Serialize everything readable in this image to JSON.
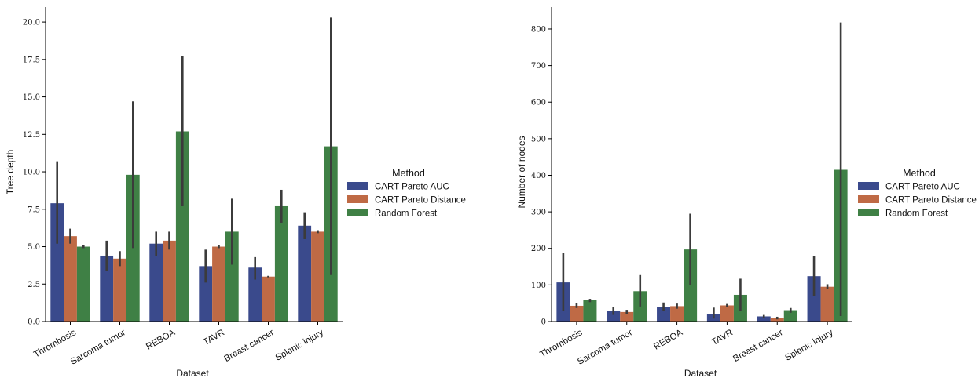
{
  "chart_data": [
    {
      "type": "bar",
      "xlabel": "Dataset",
      "ylabel": "Tree depth",
      "ylim": [
        0,
        21
      ],
      "yticks": [
        0.0,
        2.5,
        5.0,
        7.5,
        10.0,
        12.5,
        15.0,
        17.5,
        20.0
      ],
      "ytick_labels": [
        "0.0",
        "2.5",
        "5.0",
        "7.5",
        "10.0",
        "12.5",
        "15.0",
        "17.5",
        "20.0"
      ],
      "categories": [
        "Thrombosis",
        "Sarcoma tumor",
        "REBOA",
        "TAVR",
        "Breast cancer",
        "Splenic injury"
      ],
      "legend": {
        "title": "Method",
        "placement": "right"
      },
      "series": [
        {
          "name": "CART Pareto AUC",
          "color": "#3a4a8c",
          "values": [
            7.9,
            4.4,
            5.2,
            3.7,
            3.6,
            6.4
          ],
          "ci": [
            [
              5.2,
              10.7
            ],
            [
              3.4,
              5.4
            ],
            [
              4.4,
              6.0
            ],
            [
              2.6,
              4.8
            ],
            [
              2.8,
              4.3
            ],
            [
              5.5,
              7.3
            ]
          ]
        },
        {
          "name": "CART Pareto Distance",
          "color": "#bf6a45",
          "values": [
            5.7,
            4.2,
            5.4,
            5.0,
            3.0,
            6.0
          ],
          "ci": [
            [
              5.2,
              6.2
            ],
            [
              3.7,
              4.7
            ],
            [
              4.8,
              6.0
            ],
            [
              4.9,
              5.1
            ],
            [
              2.95,
              3.05
            ],
            [
              5.9,
              6.1
            ]
          ]
        },
        {
          "name": "Random Forest",
          "color": "#3f8045",
          "values": [
            5.0,
            9.8,
            12.7,
            6.0,
            7.7,
            11.7
          ],
          "ci": [
            [
              4.9,
              5.1
            ],
            [
              4.9,
              14.7
            ],
            [
              7.7,
              17.7
            ],
            [
              3.8,
              8.2
            ],
            [
              6.6,
              8.8
            ],
            [
              3.1,
              20.3
            ]
          ]
        }
      ]
    },
    {
      "type": "bar",
      "xlabel": "Dataset",
      "ylabel": "Number of nodes",
      "ylim": [
        0,
        860
      ],
      "yticks": [
        0,
        100,
        200,
        300,
        400,
        500,
        600,
        700,
        800
      ],
      "ytick_labels": [
        "0",
        "100",
        "200",
        "300",
        "400",
        "500",
        "600",
        "700",
        "800"
      ],
      "categories": [
        "Thrombosis",
        "Sarcoma tumor",
        "REBOA",
        "TAVR",
        "Breast cancer",
        "Splenic injury"
      ],
      "legend": {
        "title": "Method",
        "placement": "right"
      },
      "series": [
        {
          "name": "CART Pareto AUC",
          "color": "#3a4a8c",
          "values": [
            107,
            28,
            39,
            21,
            14,
            124
          ],
          "ci": [
            [
              30,
              187
            ],
            [
              18,
              40
            ],
            [
              28,
              52
            ],
            [
              8,
              38
            ],
            [
              9,
              18
            ],
            [
              70,
              178
            ]
          ]
        },
        {
          "name": "CART Pareto Distance",
          "color": "#bf6a45",
          "values": [
            43,
            26,
            42,
            44,
            10,
            95
          ],
          "ci": [
            [
              37,
              50
            ],
            [
              20,
              32
            ],
            [
              35,
              49
            ],
            [
              40,
              48
            ],
            [
              6,
              13
            ],
            [
              90,
              102
            ]
          ]
        },
        {
          "name": "Random Forest",
          "color": "#3f8045",
          "values": [
            58,
            83,
            197,
            73,
            31,
            415
          ],
          "ci": [
            [
              53,
              62
            ],
            [
              41,
              127
            ],
            [
              100,
              295
            ],
            [
              28,
              117
            ],
            [
              24,
              37
            ],
            [
              15,
              818
            ]
          ]
        }
      ]
    }
  ]
}
